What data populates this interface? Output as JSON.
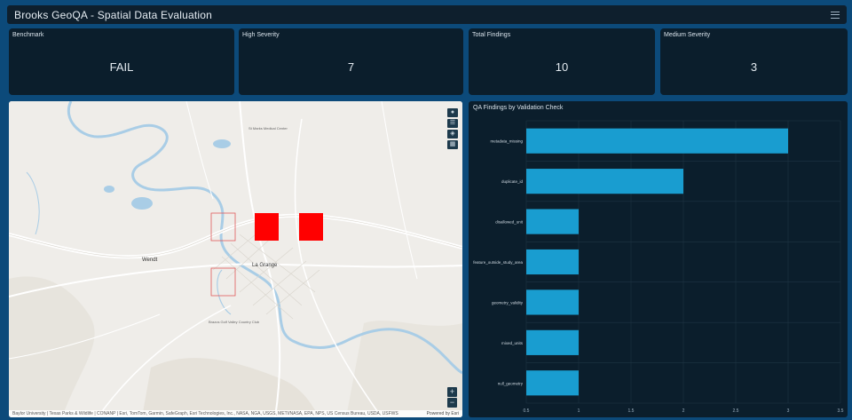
{
  "header": {
    "title": "Brooks GeoQA - Spatial Data Evaluation",
    "menu_icon": "hamburger-menu-icon"
  },
  "cards": [
    {
      "label": "Benchmark",
      "value": "FAIL"
    },
    {
      "label": "High Severity",
      "value": "7"
    },
    {
      "label": "Total Findings",
      "value": "10"
    },
    {
      "label": "Medium Severity",
      "value": "3"
    }
  ],
  "map": {
    "town_labels": {
      "wendt": "Wendt",
      "la_grange": "La Grange",
      "st_marks": "St Marks Medical Center",
      "country_club": "Brazos Golf Valley Country Club"
    },
    "tools": {
      "person": "person-icon",
      "list": "layers-list-icon",
      "layers": "layers-icon",
      "basemap": "basemap-icon"
    },
    "zoom_in": "+",
    "zoom_out": "−",
    "attribution": "Baylor University | Texas Parks & Wildlife | CONANP | Esri, TomTom, Garmin, SafeGraph, Esri Technologies, Inc., NASA, NGA, USGS, METI/NASA, EPA, NPS, US Census Bureau, USDA, USFWS",
    "powered_by": "Powered by Esri"
  },
  "chart_data": {
    "type": "bar",
    "orientation": "horizontal",
    "title": "QA Findings by Validation Check",
    "categories": [
      "metadata_missing",
      "duplicate_id",
      "disallowed_unit",
      "feature_outside_study_area",
      "geometry_validity",
      "mixed_units",
      "null_geometry"
    ],
    "category_labels": [
      "metadata_missing",
      "duplicate_id",
      "disallowed_unit",
      "feature_outside_study_area",
      "geometry_validity",
      "mixed_units",
      "null_geometry"
    ],
    "values": [
      3,
      2,
      1,
      1,
      1,
      1,
      1
    ],
    "xlim": [
      0.5,
      3.5
    ],
    "xticks": [
      "0.5",
      "1",
      "1.5",
      "2",
      "2.5",
      "3",
      "3.5"
    ],
    "bar_color": "#199dd0",
    "grid": true
  },
  "colors": {
    "background": "#0c4a7a",
    "panel": "#0b1e2c",
    "flag_fill": "#ff0000"
  }
}
